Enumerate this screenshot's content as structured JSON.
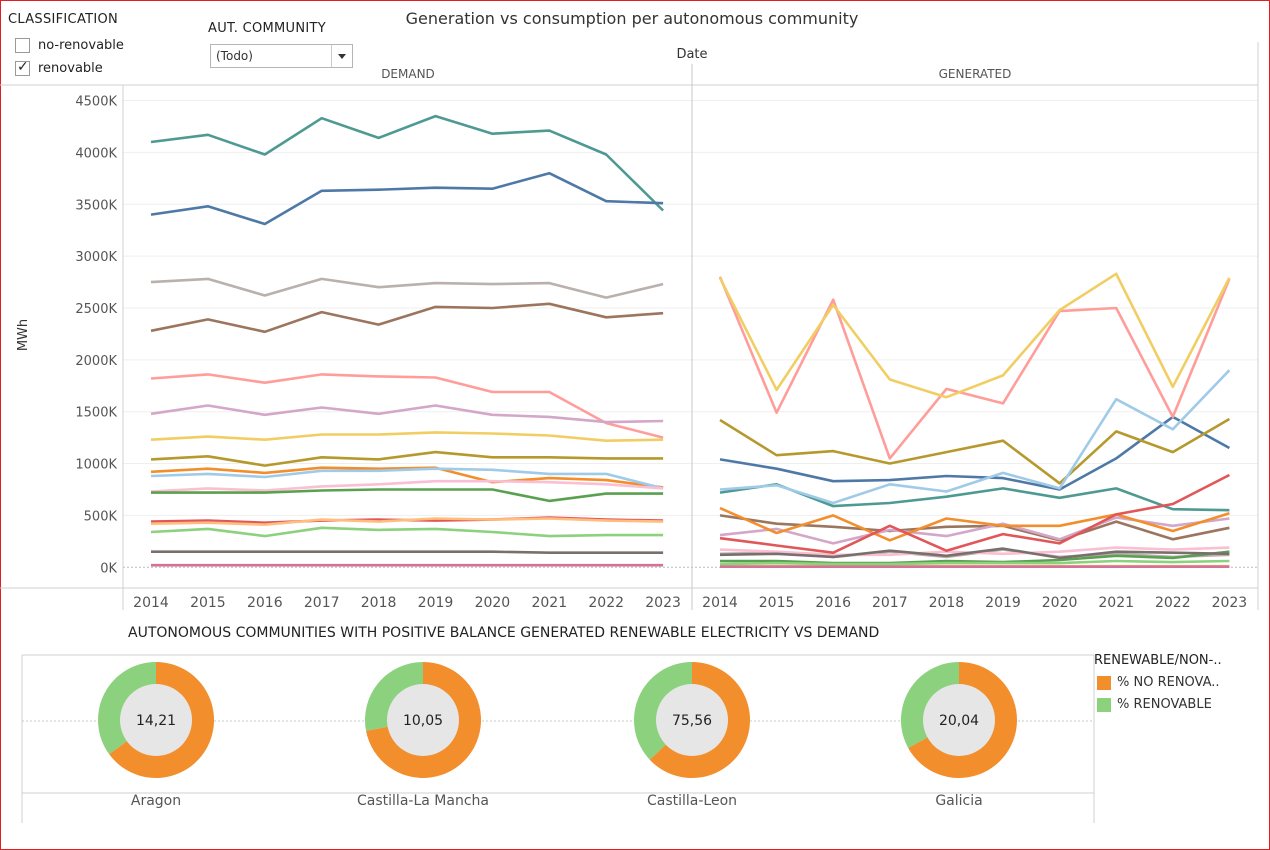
{
  "filters": {
    "classification": {
      "title": "CLASSIFICATION",
      "options": [
        {
          "label": "no-renovable",
          "checked": false
        },
        {
          "label": "renovable",
          "checked": true
        }
      ]
    },
    "community": {
      "title": "AUT. COMMUNITY",
      "selected": "(Todo)"
    }
  },
  "chart_data": [
    {
      "type": "line",
      "title": "Generation vs consumption per autonomous community",
      "column_header": "Date",
      "panels": [
        "DEMAND",
        "GENERATED"
      ],
      "ylabel": "MWh",
      "ylim": [
        -200000,
        4650000
      ],
      "y_ticks": [
        0,
        500000,
        1000000,
        1500000,
        2000000,
        2500000,
        3000000,
        3500000,
        4000000,
        4500000
      ],
      "y_tick_labels": [
        "0K",
        "500K",
        "1000K",
        "1500K",
        "2000K",
        "2500K",
        "3000K",
        "3500K",
        "4000K",
        "4500K"
      ],
      "x": [
        "2014",
        "2015",
        "2016",
        "2017",
        "2018",
        "2019",
        "2020",
        "2021",
        "2022",
        "2023"
      ],
      "grid": true,
      "series": [
        {
          "color": "#4e9a92",
          "demand": [
            4100000,
            4170000,
            3980000,
            4330000,
            4140000,
            4350000,
            4180000,
            4210000,
            3980000,
            3440000
          ],
          "generated": [
            720000,
            800000,
            590000,
            620000,
            680000,
            760000,
            670000,
            760000,
            560000,
            550000
          ]
        },
        {
          "color": "#4e79a7",
          "demand": [
            3400000,
            3480000,
            3310000,
            3630000,
            3640000,
            3660000,
            3650000,
            3800000,
            3530000,
            3510000
          ],
          "generated": [
            1040000,
            950000,
            830000,
            840000,
            880000,
            860000,
            750000,
            1050000,
            1450000,
            1150000
          ]
        },
        {
          "color": "#bab0ac",
          "demand": [
            2750000,
            2780000,
            2620000,
            2780000,
            2700000,
            2740000,
            2730000,
            2740000,
            2600000,
            2730000
          ],
          "generated": [
            130000,
            140000,
            100000,
            150000,
            100000,
            170000,
            100000,
            130000,
            100000,
            120000
          ]
        },
        {
          "color": "#9c755f",
          "demand": [
            2280000,
            2390000,
            2270000,
            2460000,
            2340000,
            2510000,
            2500000,
            2540000,
            2410000,
            2450000
          ],
          "generated": [
            500000,
            420000,
            390000,
            350000,
            390000,
            400000,
            260000,
            440000,
            270000,
            380000
          ]
        },
        {
          "color": "#ff9d9a",
          "demand": [
            1820000,
            1860000,
            1780000,
            1860000,
            1840000,
            1830000,
            1690000,
            1690000,
            1390000,
            1250000
          ],
          "generated": [
            2800000,
            1490000,
            2580000,
            1050000,
            1720000,
            1580000,
            2470000,
            2500000,
            1450000,
            2780000
          ]
        },
        {
          "color": "#d4a6c8",
          "demand": [
            1480000,
            1560000,
            1470000,
            1540000,
            1480000,
            1560000,
            1470000,
            1450000,
            1400000,
            1410000
          ],
          "generated": [
            310000,
            370000,
            230000,
            360000,
            300000,
            420000,
            270000,
            480000,
            400000,
            470000
          ]
        },
        {
          "color": "#f1ce63",
          "demand": [
            1230000,
            1260000,
            1230000,
            1280000,
            1280000,
            1300000,
            1290000,
            1270000,
            1220000,
            1230000
          ],
          "generated": [
            2790000,
            1710000,
            2530000,
            1810000,
            1640000,
            1850000,
            2480000,
            2830000,
            1740000,
            2790000
          ]
        },
        {
          "color": "#b6992d",
          "demand": [
            1040000,
            1070000,
            980000,
            1060000,
            1040000,
            1110000,
            1060000,
            1060000,
            1050000,
            1050000
          ],
          "generated": [
            1420000,
            1080000,
            1120000,
            1000000,
            1110000,
            1220000,
            810000,
            1310000,
            1110000,
            1430000
          ]
        },
        {
          "color": "#f28e2b",
          "demand": [
            920000,
            950000,
            910000,
            960000,
            950000,
            960000,
            820000,
            860000,
            840000,
            770000
          ],
          "generated": [
            570000,
            330000,
            500000,
            260000,
            470000,
            400000,
            400000,
            510000,
            350000,
            520000
          ]
        },
        {
          "color": "#a0cbe8",
          "demand": [
            880000,
            900000,
            870000,
            930000,
            930000,
            950000,
            940000,
            900000,
            900000,
            760000
          ],
          "generated": [
            750000,
            790000,
            620000,
            800000,
            730000,
            910000,
            760000,
            1620000,
            1330000,
            1900000
          ]
        },
        {
          "color": "#fabfd2",
          "demand": [
            730000,
            760000,
            740000,
            780000,
            800000,
            830000,
            830000,
            820000,
            800000,
            760000
          ],
          "generated": [
            170000,
            150000,
            120000,
            120000,
            150000,
            130000,
            150000,
            190000,
            170000,
            190000
          ]
        },
        {
          "color": "#59a14f",
          "demand": [
            720000,
            720000,
            720000,
            740000,
            750000,
            750000,
            750000,
            640000,
            710000,
            710000
          ],
          "generated": [
            60000,
            60000,
            40000,
            40000,
            60000,
            50000,
            70000,
            110000,
            90000,
            150000
          ]
        },
        {
          "color": "#e15759",
          "demand": [
            440000,
            450000,
            430000,
            450000,
            460000,
            450000,
            460000,
            480000,
            460000,
            450000
          ],
          "generated": [
            280000,
            210000,
            140000,
            400000,
            160000,
            320000,
            230000,
            510000,
            610000,
            890000
          ]
        },
        {
          "color": "#ffbe7d",
          "demand": [
            420000,
            430000,
            410000,
            460000,
            440000,
            470000,
            460000,
            470000,
            450000,
            440000
          ],
          "generated": [
            10000,
            10000,
            10000,
            10000,
            10000,
            10000,
            10000,
            10000,
            10000,
            10000
          ]
        },
        {
          "color": "#8cd17d",
          "demand": [
            340000,
            370000,
            300000,
            380000,
            360000,
            370000,
            340000,
            300000,
            310000,
            310000
          ],
          "generated": [
            30000,
            40000,
            30000,
            30000,
            40000,
            40000,
            40000,
            60000,
            50000,
            60000
          ]
        },
        {
          "color": "#79706e",
          "demand": [
            150000,
            150000,
            150000,
            150000,
            150000,
            150000,
            150000,
            140000,
            140000,
            140000
          ],
          "generated": [
            120000,
            130000,
            100000,
            160000,
            110000,
            180000,
            90000,
            150000,
            140000,
            130000
          ]
        },
        {
          "color": "#d37295",
          "demand": [
            20000,
            20000,
            20000,
            20000,
            20000,
            20000,
            20000,
            20000,
            20000,
            20000
          ],
          "generated": [
            5000,
            5000,
            5000,
            5000,
            5000,
            5000,
            5000,
            5000,
            5000,
            5000
          ]
        }
      ]
    },
    {
      "type": "pie",
      "title": "AUTONOMOUS COMMUNITIES WITH POSITIVE BALANCE GENERATED RENEWABLE ELECTRICITY VS DEMAND",
      "legend_title": "RENEWABLE/NON-..",
      "legend": [
        {
          "label": "% NO RENOVA..",
          "color": "#f28e2b"
        },
        {
          "label": "% RENOVABLE",
          "color": "#8cd17d"
        }
      ],
      "legend_position": "right",
      "donuts": [
        {
          "name": "Aragon",
          "center": "14,21",
          "slices": [
            65,
            35
          ]
        },
        {
          "name": "Castilla-La Mancha",
          "center": "10,05",
          "slices": [
            72,
            28
          ]
        },
        {
          "name": "Castilla-Leon",
          "center": "75,56",
          "slices": [
            63,
            37
          ]
        },
        {
          "name": "Galicia",
          "center": "20,04",
          "slices": [
            67,
            33
          ]
        }
      ]
    }
  ]
}
